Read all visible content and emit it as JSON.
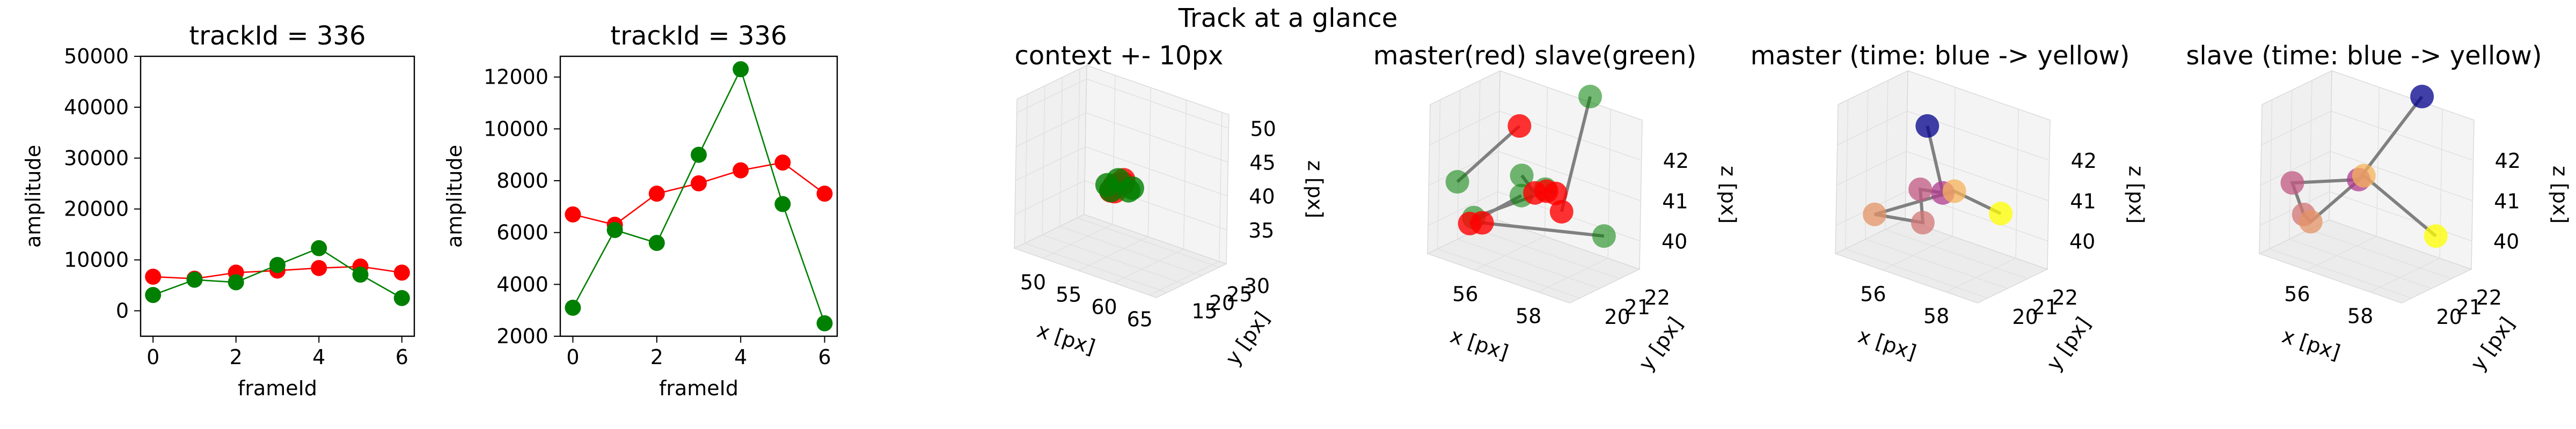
{
  "suptitle": "Track at a glance",
  "colors": {
    "master": "#ff0000",
    "slave": "#008000",
    "connector": "#808080",
    "time_start": "#00008b",
    "time_end": "#ffff00",
    "pane": "#f2f2f2",
    "grid": "#e0e0e0"
  },
  "chart_data": [
    {
      "type": "line",
      "title": "trackId = 336",
      "xlabel": "frameId",
      "ylabel": "amplitude",
      "xlim": [
        -0.3,
        6.3
      ],
      "ylim": [
        -5000,
        50000
      ],
      "xticks": [
        0,
        2,
        4,
        6
      ],
      "yticks": [
        0,
        10000,
        20000,
        30000,
        40000,
        50000
      ],
      "x": [
        0,
        1,
        2,
        3,
        4,
        5,
        6
      ],
      "series": [
        {
          "color": "#ff0000",
          "values": [
            6700,
            6300,
            7500,
            7900,
            8400,
            8700,
            7500
          ]
        },
        {
          "color": "#008000",
          "values": [
            3100,
            6100,
            5600,
            9000,
            12300,
            7100,
            2500
          ]
        }
      ]
    },
    {
      "type": "line",
      "title": "trackId = 336",
      "xlabel": "frameId",
      "ylabel": "amplitude",
      "xlim": [
        -0.3,
        6.3
      ],
      "ylim": [
        2000,
        12800
      ],
      "xticks": [
        0,
        2,
        4,
        6
      ],
      "yticks": [
        2000,
        4000,
        6000,
        8000,
        10000,
        12000
      ],
      "x": [
        0,
        1,
        2,
        3,
        4,
        5,
        6
      ],
      "series": [
        {
          "color": "#ff0000",
          "values": [
            6700,
            6300,
            7500,
            7900,
            8400,
            8700,
            7500
          ]
        },
        {
          "color": "#008000",
          "values": [
            3100,
            6100,
            5600,
            9000,
            12300,
            7100,
            2500
          ]
        }
      ]
    },
    {
      "type": "scatter",
      "projection": "3d",
      "title": "context +- 10px",
      "xlabel": "x [px]",
      "ylabel": "y [px]",
      "zlabel": "z [px]",
      "xlim": [
        46,
        66
      ],
      "ylim": [
        12,
        32
      ],
      "zlim": [
        30,
        52
      ],
      "xticks": [
        50,
        55,
        60,
        65
      ],
      "yticks": [
        15,
        20,
        25,
        30
      ],
      "zticks": [
        35,
        40,
        45,
        50
      ],
      "points": [
        {
          "x": 56,
          "y": 20,
          "z": 40,
          "color": "#ff0000"
        },
        {
          "x": 55.5,
          "y": 21,
          "z": 40.5,
          "color": "#ff0000"
        },
        {
          "x": 56.5,
          "y": 21.5,
          "z": 41,
          "color": "#ff0000"
        },
        {
          "x": 57,
          "y": 20.5,
          "z": 42,
          "color": "#ff0000"
        },
        {
          "x": 55,
          "y": 21,
          "z": 39.5,
          "color": "#ff0000"
        },
        {
          "x": 55.5,
          "y": 20,
          "z": 40,
          "color": "#008000"
        },
        {
          "x": 57,
          "y": 22,
          "z": 40,
          "color": "#008000"
        },
        {
          "x": 56,
          "y": 21,
          "z": 41.5,
          "color": "#008000"
        },
        {
          "x": 54.8,
          "y": 20.3,
          "z": 40.5,
          "color": "#008000"
        },
        {
          "x": 58,
          "y": 21,
          "z": 41,
          "color": "#008000"
        }
      ]
    },
    {
      "type": "scatter",
      "projection": "3d",
      "title": "master(red) slave(green)",
      "xlabel": "x [px]",
      "ylabel": "y [px]",
      "zlabel": "z [px]",
      "xlim": [
        54.5,
        59
      ],
      "ylim": [
        19.5,
        23
      ],
      "zlim": [
        39.3,
        43
      ],
      "xticks": [
        56,
        58
      ],
      "yticks": [
        20,
        21,
        22
      ],
      "zticks": [
        40,
        41,
        42
      ],
      "master": [
        {
          "x": 56.2,
          "y": 21.3,
          "z": 42.5
        },
        {
          "x": 56.6,
          "y": 21.5,
          "z": 40.9
        },
        {
          "x": 57.0,
          "y": 21.9,
          "z": 40.9
        },
        {
          "x": 57.2,
          "y": 21.9,
          "z": 40.5
        },
        {
          "x": 56.9,
          "y": 21.6,
          "z": 41.0
        },
        {
          "x": 55.7,
          "y": 20.3,
          "z": 40.2
        },
        {
          "x": 55.5,
          "y": 20.0,
          "z": 40.2
        }
      ],
      "slave": [
        {
          "x": 54.9,
          "y": 20.3,
          "z": 41.0
        },
        {
          "x": 56.3,
          "y": 21.3,
          "z": 41.3
        },
        {
          "x": 56.8,
          "y": 21.7,
          "z": 41.0
        },
        {
          "x": 57.6,
          "y": 22.6,
          "z": 43.3
        },
        {
          "x": 55.5,
          "y": 20.2,
          "z": 40.3
        },
        {
          "x": 58.3,
          "y": 22.3,
          "z": 40.1
        },
        {
          "x": 56.3,
          "y": 21.3,
          "z": 40.8
        }
      ]
    },
    {
      "type": "scatter",
      "projection": "3d",
      "title": "master (time: blue -> yellow)",
      "xlabel": "x [px]",
      "ylabel": "y [px]",
      "zlabel": "z [px]",
      "xlim": [
        54.5,
        59
      ],
      "ylim": [
        19.5,
        23
      ],
      "zlim": [
        39.3,
        43
      ],
      "xticks": [
        56,
        58
      ],
      "yticks": [
        20,
        21,
        22
      ],
      "zticks": [
        40,
        41,
        42
      ],
      "color_start": "#00008b",
      "color_end": "#ffff00",
      "points": [
        {
          "x": 56.2,
          "y": 21.3,
          "z": 42.5
        },
        {
          "x": 56.6,
          "y": 21.5,
          "z": 40.9
        },
        {
          "x": 56.2,
          "y": 21.0,
          "z": 41.0
        },
        {
          "x": 56.3,
          "y": 21.0,
          "z": 40.2
        },
        {
          "x": 55.4,
          "y": 20.0,
          "z": 40.4
        },
        {
          "x": 56.9,
          "y": 21.6,
          "z": 41.0
        },
        {
          "x": 58.0,
          "y": 22.2,
          "z": 40.6
        }
      ]
    },
    {
      "type": "scatter",
      "projection": "3d",
      "title": "slave (time: blue -> yellow)",
      "xlabel": "x [px]",
      "ylabel": "y [px]",
      "zlabel": "z [px]",
      "xlim": [
        54.5,
        59
      ],
      "ylim": [
        19.5,
        23
      ],
      "zlim": [
        39.3,
        43
      ],
      "xticks": [
        56,
        58
      ],
      "yticks": [
        20,
        21,
        22
      ],
      "zticks": [
        40,
        41,
        42
      ],
      "color_start": "#00008b",
      "color_end": "#ffff00",
      "points": [
        {
          "x": 57.6,
          "y": 22.6,
          "z": 43.3
        },
        {
          "x": 56.4,
          "y": 21.4,
          "z": 41.2
        },
        {
          "x": 55.0,
          "y": 20.3,
          "z": 41.0
        },
        {
          "x": 55.5,
          "y": 20.1,
          "z": 40.4
        },
        {
          "x": 55.6,
          "y": 20.3,
          "z": 40.2
        },
        {
          "x": 56.5,
          "y": 21.5,
          "z": 41.3
        },
        {
          "x": 58.3,
          "y": 22.3,
          "z": 40.1
        }
      ]
    }
  ]
}
